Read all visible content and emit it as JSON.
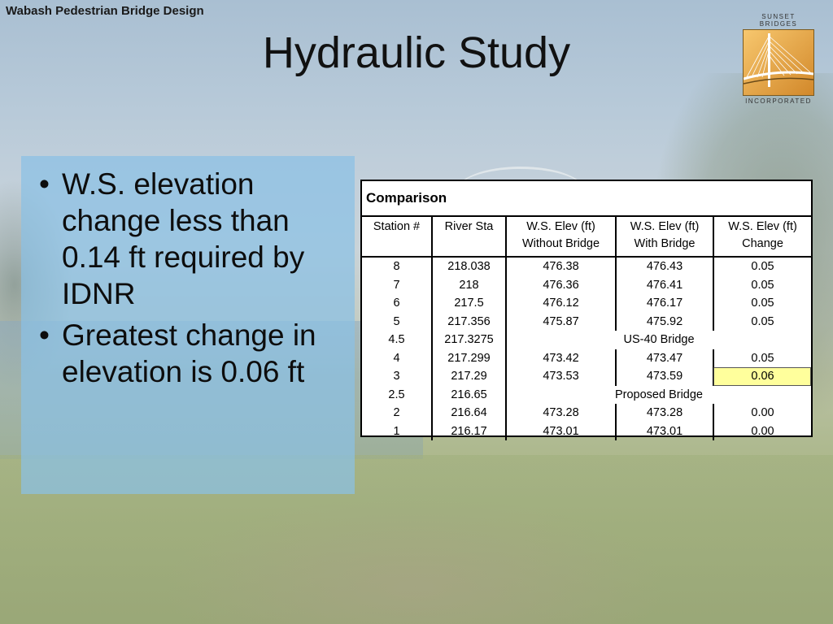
{
  "header": {
    "brand": "Wabash Pedestrian Bridge Design",
    "title": "Hydraulic Study"
  },
  "logo": {
    "top_text": "SUNSET BRIDGES",
    "bottom_text": "INCORPORATED"
  },
  "bullets": [
    "W.S. elevation change less than 0.14 ft required by IDNR",
    "Greatest change in elevation is 0.06 ft"
  ],
  "table": {
    "caption": "Comparison",
    "columns": [
      [
        "Station #",
        ""
      ],
      [
        "River Sta",
        ""
      ],
      [
        "W.S. Elev (ft)",
        "Without Bridge"
      ],
      [
        "W.S. Elev (ft)",
        "With Bridge"
      ],
      [
        "W.S. Elev (ft)",
        "Change"
      ]
    ],
    "rows": [
      {
        "station": "8",
        "river_sta": "218.038",
        "without": "476.38",
        "with": "476.43",
        "change": "0.05"
      },
      {
        "station": "7",
        "river_sta": "218",
        "without": "476.36",
        "with": "476.41",
        "change": "0.05"
      },
      {
        "station": "6",
        "river_sta": "217.5",
        "without": "476.12",
        "with": "476.17",
        "change": "0.05"
      },
      {
        "station": "5",
        "river_sta": "217.356",
        "without": "475.87",
        "with": "475.92",
        "change": "0.05"
      },
      {
        "station": "4.5",
        "river_sta": "217.3275",
        "note": "US-40 Bridge"
      },
      {
        "station": "4",
        "river_sta": "217.299",
        "without": "473.42",
        "with": "473.47",
        "change": "0.05"
      },
      {
        "station": "3",
        "river_sta": "217.29",
        "without": "473.53",
        "with": "473.59",
        "change": "0.06",
        "highlight": true
      },
      {
        "station": "2.5",
        "river_sta": "216.65",
        "note": "Proposed Bridge"
      },
      {
        "station": "2",
        "river_sta": "216.64",
        "without": "473.28",
        "with": "473.28",
        "change": "0.00"
      },
      {
        "station": "1",
        "river_sta": "216.17",
        "without": "473.01",
        "with": "473.01",
        "change": "0.00"
      }
    ]
  },
  "colors": {
    "panel": "#8ac1e4",
    "highlight": "#ffff9c"
  }
}
